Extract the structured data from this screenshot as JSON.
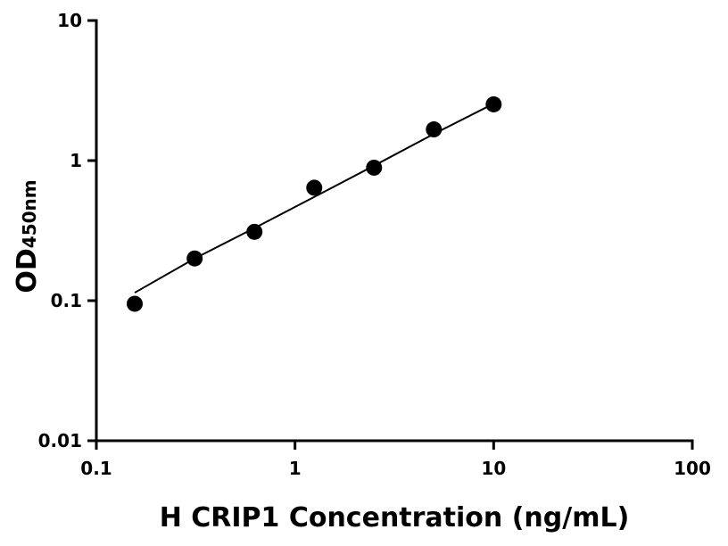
{
  "chart_data": {
    "type": "scatter",
    "xlabel": "H CRIP1 Concentration (ng/mL)",
    "ylabel": "OD",
    "ylabel_sub": "450nm",
    "x": [
      0.156,
      0.3125,
      0.625,
      1.25,
      2.5,
      5,
      10
    ],
    "series": [
      {
        "color": "#000000",
        "values": [
          0.095,
          0.2,
          0.31,
          0.64,
          0.89,
          1.67,
          2.52
        ]
      }
    ],
    "fit": {
      "color": "#000000",
      "x": [
        0.156,
        0.3125,
        0.625,
        1.25,
        2.5,
        5,
        10
      ],
      "values": [
        0.114,
        0.2,
        0.33,
        0.55,
        0.92,
        1.55,
        2.55
      ]
    },
    "xscale": "log",
    "yscale": "log",
    "xlim": [
      0.1,
      100
    ],
    "ylim": [
      0.01,
      10
    ],
    "xticks": [
      0.1,
      1,
      10,
      100
    ],
    "yticks": [
      0.01,
      0.1,
      1,
      10
    ]
  }
}
